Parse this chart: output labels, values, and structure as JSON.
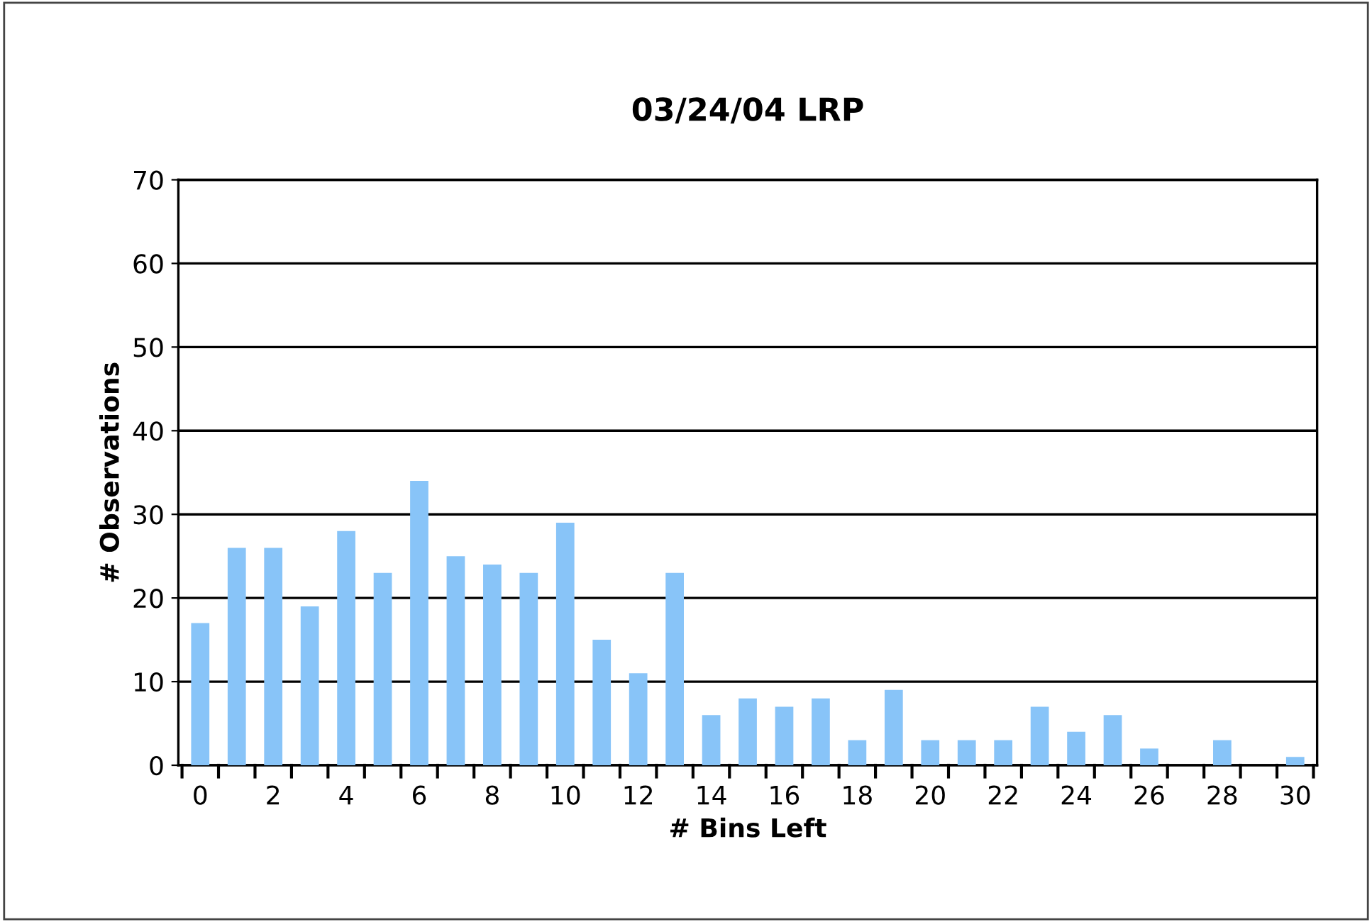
{
  "chart_data": {
    "type": "bar",
    "title": "03/24/04 LRP",
    "xlabel": "# Bins Left",
    "ylabel": "# Observations",
    "categories": [
      "0",
      null,
      "2",
      null,
      "4",
      null,
      "6",
      null,
      "8",
      null,
      "10",
      null,
      "12",
      null,
      "14",
      null,
      "16",
      null,
      "18",
      null,
      "20",
      null,
      "22",
      null,
      "24",
      null,
      "26",
      null,
      "28",
      null,
      "30"
    ],
    "values": [
      17,
      26,
      26,
      19,
      28,
      23,
      34,
      25,
      24,
      23,
      29,
      15,
      11,
      23,
      6,
      8,
      7,
      8,
      3,
      9,
      3,
      3,
      3,
      7,
      4,
      6,
      2,
      0,
      3,
      0,
      1
    ],
    "color": "#88c4f8",
    "ylim": [
      0,
      70
    ],
    "yticks": [
      0,
      10,
      20,
      30,
      40,
      50,
      60,
      70
    ],
    "grid": "y"
  }
}
